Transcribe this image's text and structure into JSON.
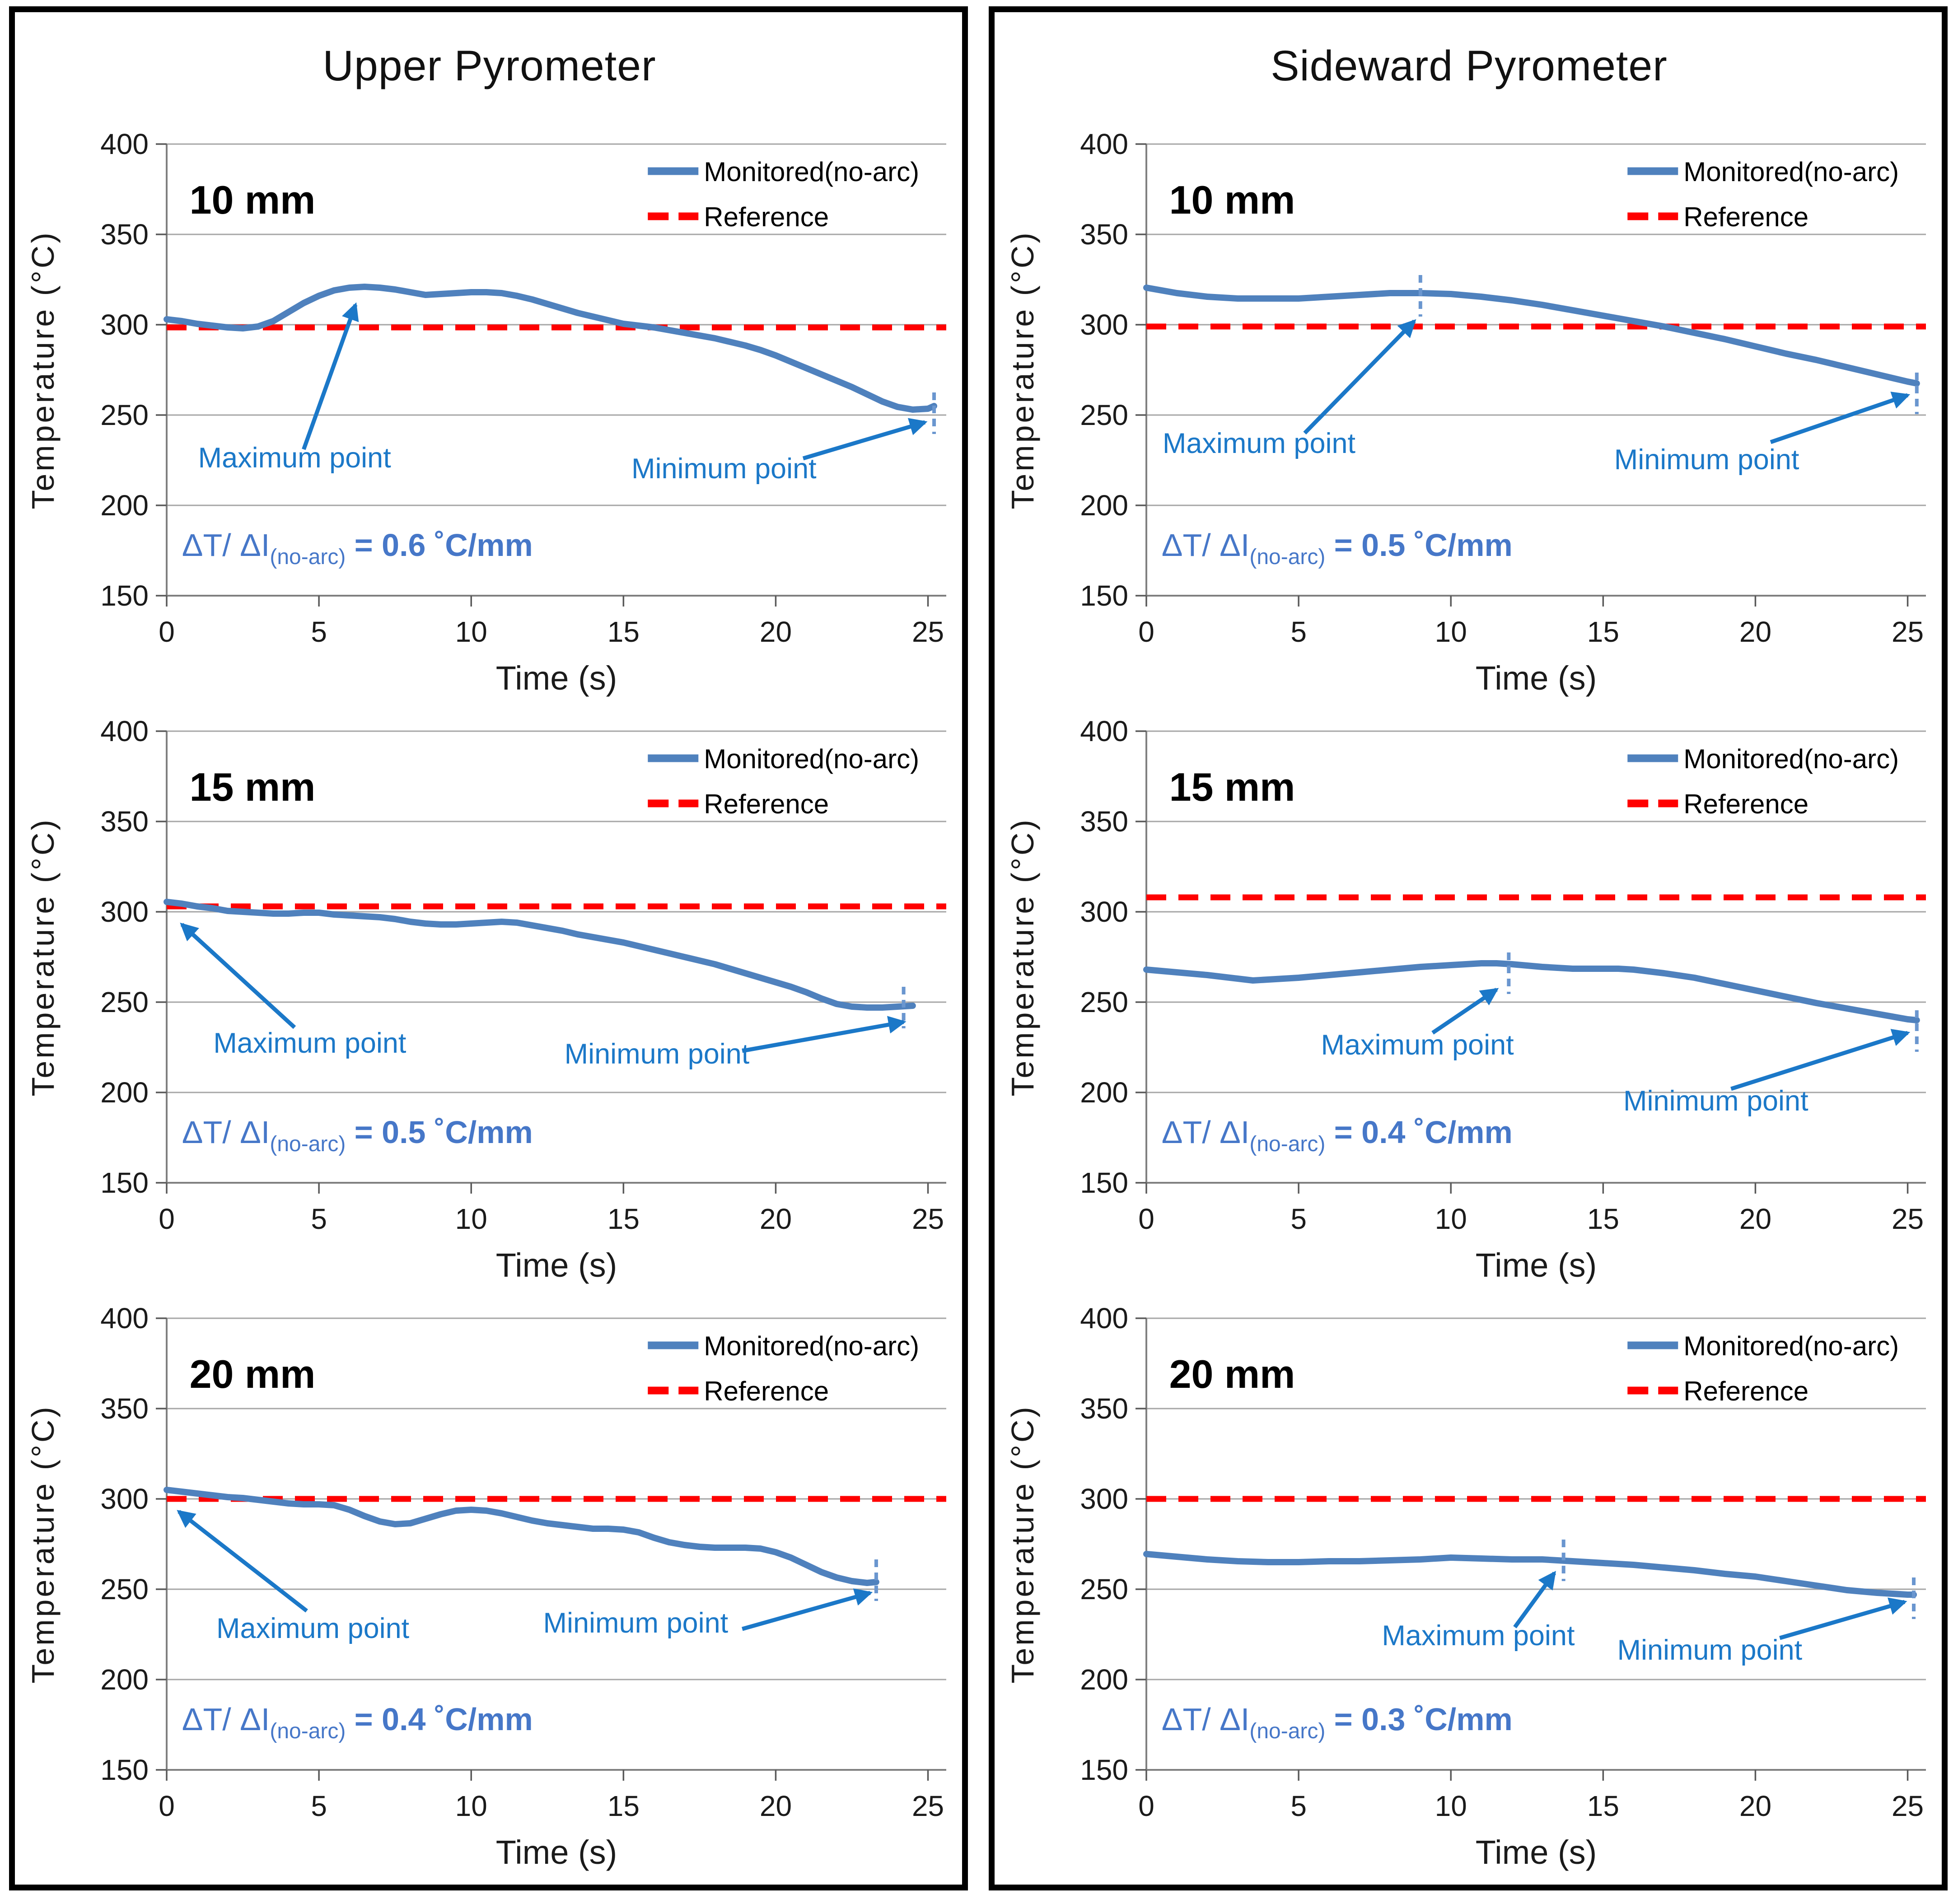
{
  "panels": [
    {
      "title": "Upper Pyrometer"
    },
    {
      "title": "Sideward Pyrometer"
    }
  ],
  "axes": {
    "xlabel": "Time (s)",
    "ylabel": "Temperature (°C)",
    "xticks": [
      0,
      5,
      10,
      15,
      20,
      25
    ],
    "yticks": [
      400,
      350,
      300,
      250,
      200,
      150
    ],
    "xlim": [
      0,
      25.6
    ],
    "ylim": [
      150,
      400
    ],
    "grid": "on"
  },
  "legend": {
    "position": "top-right-inside",
    "monitored_label": "Monitored(no-arc)",
    "reference_label": "Reference"
  },
  "colors": {
    "monitored": "#4F81BD",
    "reference": "#FF0000",
    "annotation": "#1B78C8",
    "equation": "#4677C8",
    "grid": "#A6A6A6",
    "axis": "#808080",
    "tick": "#595959",
    "text": "#1A1A1A"
  },
  "chart_data": [
    {
      "type": "line",
      "panel": "Upper Pyrometer",
      "size_label": "10 mm",
      "reference_value": 298.5,
      "equation": {
        "lhs": "ΔT/ ΔI",
        "sub": "(no-arc)",
        "rhs": " = 0.6 ˚C/mm",
        "text": "ΔT/ ΔI(no-arc) = 0.6 °C/mm"
      },
      "series": {
        "name": "Monitored(no-arc)",
        "x": [
          0,
          0.5,
          1,
          1.5,
          2,
          2.5,
          3,
          3.5,
          4,
          4.5,
          5,
          5.5,
          6,
          6.5,
          7,
          7.5,
          8,
          8.5,
          9,
          9.5,
          10,
          10.5,
          11,
          11.5,
          12,
          12.5,
          13,
          13.5,
          14,
          14.5,
          15,
          15.5,
          16,
          16.5,
          17,
          17.5,
          18,
          18.5,
          19,
          19.5,
          20,
          20.5,
          21,
          21.5,
          22,
          22.5,
          23,
          23.5,
          24,
          24.5,
          25,
          25.2
        ],
        "y": [
          303,
          302,
          300.5,
          299.5,
          298.5,
          298,
          299,
          302,
          307,
          312,
          316,
          319,
          320.5,
          321,
          320.5,
          319.5,
          318,
          316.5,
          317,
          317.5,
          318,
          318,
          317.5,
          316,
          314,
          311.5,
          309,
          306.5,
          304.5,
          302.5,
          300.5,
          299.5,
          298.5,
          297,
          295.5,
          294,
          292.5,
          290.5,
          288.5,
          286,
          283,
          279.5,
          276,
          272.5,
          269,
          265.5,
          261.5,
          257.5,
          254.5,
          253,
          253.5,
          255
        ]
      },
      "max_annotation": {
        "label": "Maximum point",
        "label_pos": [
          4.2,
          221
        ],
        "arrow_from": [
          4.5,
          231
        ],
        "arrow_to": [
          6.2,
          311
        ],
        "tick": null
      },
      "min_annotation": {
        "label": "Minimum point",
        "label_pos": [
          18.3,
          215
        ],
        "arrow_from": [
          20.9,
          226
        ],
        "arrow_to": [
          24.9,
          246
        ],
        "tick": [
          25.2,
          251
        ]
      }
    },
    {
      "type": "line",
      "panel": "Sideward Pyrometer",
      "size_label": "10 mm",
      "reference_value": 299,
      "equation": {
        "lhs": "ΔT/ ΔI",
        "sub": "(no-arc)",
        "rhs": " = 0.5 ˚C/mm",
        "text": "ΔT/ ΔI(no-arc) = 0.5 °C/mm"
      },
      "series": {
        "name": "Monitored(no-arc)",
        "x": [
          0,
          1,
          2,
          3,
          4,
          5,
          6,
          7,
          8,
          9,
          10,
          11,
          12,
          13,
          14,
          15,
          16,
          17,
          18,
          19,
          20,
          21,
          22,
          23,
          24,
          25,
          25.3
        ],
        "y": [
          320.5,
          317.5,
          315.5,
          314.5,
          314.5,
          314.5,
          315.5,
          316.5,
          317.5,
          317.5,
          317,
          315.5,
          313.5,
          311,
          308,
          305,
          302,
          299,
          295.5,
          292,
          288,
          284,
          280.5,
          276.5,
          272.5,
          268.5,
          267.5
        ]
      },
      "max_annotation": {
        "label": "Maximum point",
        "label_pos": [
          3.7,
          229
        ],
        "arrow_from": [
          5.2,
          240
        ],
        "arrow_to": [
          8.8,
          302
        ],
        "tick": [
          9,
          316
        ]
      },
      "min_annotation": {
        "label": "Minimum point",
        "label_pos": [
          18.4,
          220
        ],
        "arrow_from": [
          20.5,
          235
        ],
        "arrow_to": [
          25.0,
          261
        ],
        "tick": [
          25.3,
          262
        ]
      }
    },
    {
      "type": "line",
      "panel": "Upper Pyrometer",
      "size_label": "15 mm",
      "reference_value": 303,
      "equation": {
        "lhs": "ΔT/ ΔI",
        "sub": "(no-arc)",
        "rhs": " = 0.5 ˚C/mm",
        "text": "ΔT/ ΔI(no-arc) = 0.5 °C/mm"
      },
      "series": {
        "name": "Monitored(no-arc)",
        "x": [
          0,
          0.5,
          1,
          1.5,
          2,
          2.5,
          3,
          3.5,
          4,
          4.5,
          5,
          5.5,
          6,
          6.5,
          7,
          7.5,
          8,
          8.5,
          9,
          9.5,
          10,
          10.5,
          11,
          11.5,
          12,
          12.5,
          13,
          13.5,
          14,
          14.5,
          15,
          15.5,
          16,
          16.5,
          17,
          17.5,
          18,
          18.5,
          19,
          19.5,
          20,
          20.5,
          21,
          21.5,
          22,
          22.5,
          23,
          23.5,
          24,
          24.5
        ],
        "y": [
          305.5,
          304.5,
          303,
          302,
          300.5,
          300,
          299.5,
          299,
          299,
          299.5,
          299.5,
          298.5,
          298,
          297.5,
          297,
          296,
          294.5,
          293.5,
          293,
          293,
          293.5,
          294,
          294.5,
          294,
          292.5,
          291,
          289.5,
          287.5,
          286,
          284.5,
          283,
          281,
          279,
          277,
          275,
          273,
          271,
          268.5,
          266,
          263.5,
          261,
          258.5,
          255.5,
          252,
          249,
          247.5,
          247,
          247,
          247.5,
          248
        ]
      },
      "max_annotation": {
        "label": "Maximum point",
        "label_pos": [
          4.7,
          222
        ],
        "arrow_from": [
          4.2,
          236
        ],
        "arrow_to": [
          0.5,
          293
        ],
        "tick": null
      },
      "min_annotation": {
        "label": "Minimum point",
        "label_pos": [
          16.1,
          216
        ],
        "arrow_from": [
          18.9,
          223
        ],
        "arrow_to": [
          24.2,
          239
        ],
        "tick": [
          24.2,
          247
        ]
      }
    },
    {
      "type": "line",
      "panel": "Sideward Pyrometer",
      "size_label": "15 mm",
      "reference_value": 308,
      "equation": {
        "lhs": "ΔT/ ΔI",
        "sub": "(no-arc)",
        "rhs": " = 0.4 ˚C/mm",
        "text": "ΔT/ ΔI(no-arc) = 0.4 °C/mm"
      },
      "series": {
        "name": "Monitored(no-arc)",
        "x": [
          0,
          1,
          2,
          3,
          3.5,
          4,
          5,
          6,
          7,
          8,
          9,
          10,
          10.5,
          11,
          11.5,
          12,
          13,
          14,
          15,
          15.5,
          16,
          17,
          18,
          19,
          20,
          21,
          22,
          23,
          24,
          25,
          25.3
        ],
        "y": [
          268,
          266.5,
          265,
          263,
          262,
          262.5,
          263.5,
          265,
          266.5,
          268,
          269.5,
          270.5,
          271,
          271.5,
          271.5,
          271,
          269.5,
          268.5,
          268.5,
          268.5,
          268,
          266,
          263.5,
          260,
          256.5,
          253,
          249.5,
          246.5,
          243.5,
          240.5,
          240
        ]
      },
      "max_annotation": {
        "label": "Maximum point",
        "label_pos": [
          8.9,
          221
        ],
        "arrow_from": [
          9.4,
          233
        ],
        "arrow_to": [
          11.5,
          257
        ],
        "tick": [
          11.9,
          266
        ]
      },
      "min_annotation": {
        "label": "Minimum point",
        "label_pos": [
          18.7,
          190
        ],
        "arrow_from": [
          19.2,
          202
        ],
        "arrow_to": [
          25.0,
          233
        ],
        "tick": [
          25.3,
          234
        ]
      }
    },
    {
      "type": "line",
      "panel": "Upper Pyrometer",
      "size_label": "20 mm",
      "reference_value": 300,
      "equation": {
        "lhs": "ΔT/ ΔI",
        "sub": "(no-arc)",
        "rhs": " = 0.4 ˚C/mm",
        "text": "ΔT/ ΔI(no-arc) = 0.4 °C/mm"
      },
      "series": {
        "name": "Monitored(no-arc)",
        "x": [
          0,
          0.5,
          1,
          1.5,
          2,
          2.5,
          3,
          3.5,
          4,
          4.5,
          5,
          5.5,
          6,
          6.5,
          7,
          7.5,
          8,
          8.5,
          9,
          9.5,
          10,
          10.5,
          11,
          11.5,
          12,
          12.5,
          13,
          13.5,
          14,
          14.5,
          15,
          15.5,
          16,
          16.5,
          17,
          17.5,
          18,
          18.5,
          19,
          19.5,
          20,
          20.5,
          21,
          21.5,
          22,
          22.5,
          23,
          23.3
        ],
        "y": [
          305,
          304,
          303,
          302,
          301,
          300.5,
          299.5,
          298.5,
          297.5,
          297,
          297,
          296.5,
          294,
          290.5,
          287.5,
          286,
          286.5,
          289,
          291.5,
          293.5,
          294,
          293.5,
          292,
          290,
          288,
          286.5,
          285.5,
          284.5,
          283.5,
          283.5,
          283,
          281.5,
          278.5,
          276,
          274.5,
          273.5,
          273,
          273,
          273,
          272.5,
          270.5,
          267.5,
          263.5,
          259.5,
          256.5,
          254.5,
          253.5,
          254
        ]
      },
      "max_annotation": {
        "label": "Maximum point",
        "label_pos": [
          4.8,
          223
        ],
        "arrow_from": [
          4.6,
          238
        ],
        "arrow_to": [
          0.4,
          293
        ],
        "tick": null
      },
      "min_annotation": {
        "label": "Minimum point",
        "label_pos": [
          15.4,
          226
        ],
        "arrow_from": [
          18.9,
          228
        ],
        "arrow_to": [
          23.1,
          248
        ],
        "tick": [
          23.3,
          255
        ]
      }
    },
    {
      "type": "line",
      "panel": "Sideward Pyrometer",
      "size_label": "20 mm",
      "reference_value": 300,
      "equation": {
        "lhs": "ΔT/ ΔI",
        "sub": "(no-arc)",
        "rhs": " = 0.3 ˚C/mm",
        "text": "ΔT/ ΔI(no-arc) = 0.3 °C/mm"
      },
      "series": {
        "name": "Monitored(no-arc)",
        "x": [
          0,
          1,
          2,
          3,
          4,
          5,
          6,
          7,
          8,
          9,
          10,
          11,
          12,
          13,
          13.5,
          14,
          15,
          16,
          17,
          18,
          19,
          20,
          21,
          22,
          23,
          24,
          25,
          25.2
        ],
        "y": [
          269.5,
          268,
          266.5,
          265.5,
          265,
          265,
          265.5,
          265.5,
          266,
          266.5,
          267.5,
          267,
          266.5,
          266.5,
          266,
          265.5,
          264.5,
          263.5,
          262,
          260.5,
          258.5,
          257,
          254.5,
          252,
          249.5,
          248,
          247,
          247
        ]
      },
      "max_annotation": {
        "label": "Maximum point",
        "label_pos": [
          10.9,
          219
        ],
        "arrow_from": [
          12.1,
          229
        ],
        "arrow_to": [
          13.4,
          259
        ],
        "tick": [
          13.7,
          266
        ]
      },
      "min_annotation": {
        "label": "Minimum point",
        "label_pos": [
          18.5,
          211
        ],
        "arrow_from": [
          20.8,
          223
        ],
        "arrow_to": [
          24.9,
          243
        ],
        "tick": [
          25.2,
          245
        ]
      }
    }
  ]
}
